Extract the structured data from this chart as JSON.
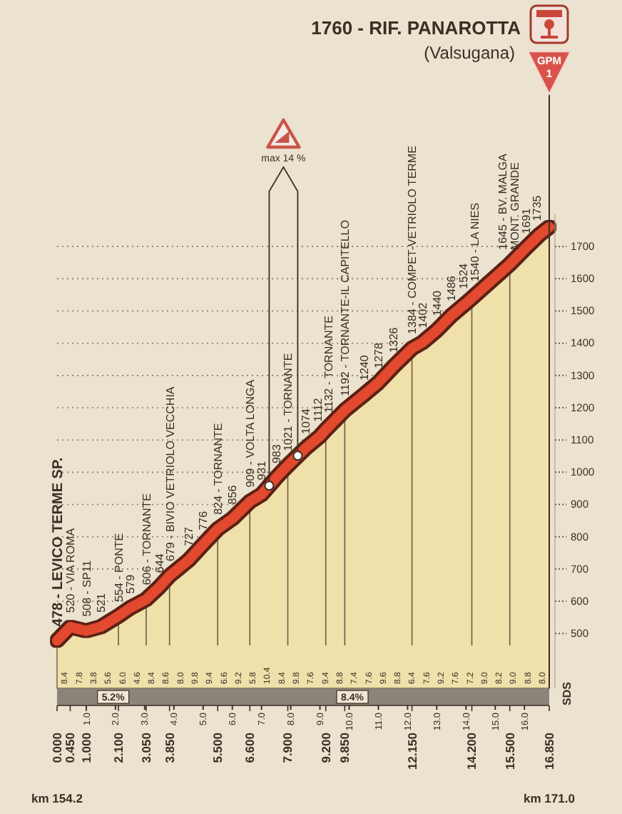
{
  "chart_data": {
    "type": "area",
    "title": "1760 - RIF. PANAROTTA",
    "subtitle": "(Valsugana)",
    "x": [
      0,
      0.45,
      1,
      1.5,
      2.1,
      2.5,
      3.05,
      3.5,
      3.85,
      4.5,
      5,
      5.5,
      6,
      6.6,
      7,
      7.5,
      7.9,
      8.5,
      9,
      9.2,
      9.85,
      10.5,
      11,
      11.5,
      12.15,
      12.5,
      13,
      13.5,
      14,
      14.2,
      15.5,
      16,
      16.5,
      16.85
    ],
    "values": [
      478,
      520,
      508,
      521,
      554,
      579,
      606,
      644,
      679,
      727,
      776,
      824,
      856,
      909,
      931,
      983,
      1021,
      1074,
      1112,
      1132,
      1192,
      1240,
      1278,
      1326,
      1384,
      1402,
      1440,
      1486,
      1524,
      1540,
      1645,
      1691,
      1735,
      1760
    ],
    "value_labels": [
      "478 - LEVICO TERME SP.",
      "520 - VIA ROMA",
      "508 - SP11",
      "521",
      "554 - PONTE",
      "579",
      "606 - TORNANTE",
      "644",
      "679 - BIVIO VETRIOLO VECCHIA",
      "727",
      "776",
      "824 - TORNANTE",
      "856",
      "909 - VOLTA LONGA",
      "931",
      "983",
      "1021 - TORNANTE",
      "1074",
      "1112",
      "1132 - TORNANTE",
      "1192 - TORNANTE-IL CAPITELLO",
      "1240",
      "1278",
      "1326",
      "1384 - COMPET-VETRIOLO TERME",
      "1402",
      "1440",
      "1486",
      "1524",
      "1540 - LA NIES",
      "1645 - BV. MALGA MONT. GRANDE",
      "1691",
      "1735",
      null
    ],
    "color": "#e2492d",
    "xlim": [
      0,
      16.85
    ],
    "xticks": [
      {
        "value": 0,
        "label": "0.000"
      },
      {
        "value": 0.45,
        "label": "0.450"
      },
      {
        "value": 1,
        "label": "1.000"
      },
      {
        "value": 2.1,
        "label": "2.100"
      },
      {
        "value": 3.05,
        "label": "3.050"
      },
      {
        "value": 3.85,
        "label": "3.850"
      },
      {
        "value": 5.5,
        "label": "5.500"
      },
      {
        "value": 6.6,
        "label": "6.600"
      },
      {
        "value": 7.9,
        "label": "7.900"
      },
      {
        "value": 9.2,
        "label": "9.200"
      },
      {
        "value": 9.85,
        "label": "9.850"
      },
      {
        "value": 12.15,
        "label": "12.150"
      },
      {
        "value": 14.2,
        "label": "14.200"
      },
      {
        "value": 15.5,
        "label": "15.500"
      },
      {
        "value": 16.85,
        "label": "16.850"
      }
    ],
    "x2lim": [
      0,
      16.85
    ],
    "x2ticks": [
      {
        "value": 1,
        "label": "1.0"
      },
      {
        "value": 2,
        "label": "2.0"
      },
      {
        "value": 3,
        "label": "3.0"
      },
      {
        "value": 4,
        "label": "4.0"
      },
      {
        "value": 5,
        "label": "5.0"
      },
      {
        "value": 6,
        "label": "6.0"
      },
      {
        "value": 7,
        "label": "7.0"
      },
      {
        "value": 8,
        "label": "8.0"
      },
      {
        "value": 9,
        "label": "9.0"
      },
      {
        "value": 10,
        "label": "10.0"
      },
      {
        "value": 11,
        "label": "11.0"
      },
      {
        "value": 12,
        "label": "12.0"
      },
      {
        "value": 13,
        "label": "13.0"
      },
      {
        "value": 14,
        "label": "14.0"
      },
      {
        "value": 15,
        "label": "15.0"
      },
      {
        "value": 16,
        "label": "16.0"
      }
    ],
    "ylim": [
      330,
      1800
    ],
    "yticks": [
      500,
      600,
      700,
      800,
      900,
      1000,
      1100,
      1200,
      1300,
      1400,
      1500,
      1600,
      1700
    ],
    "grid": true,
    "ref_lines": [
      {
        "axis": "x",
        "value": 16.85,
        "label": "GPM 1"
      }
    ],
    "annotations": [
      "km 154.2",
      "km 171.0",
      "5.2%",
      "8.4%",
      "SDS",
      "max 14 %",
      "8.4",
      "7.8",
      "3.8",
      "5.6",
      "6.0",
      "4.6",
      "8.4",
      "8.6",
      "8.0",
      "9.8",
      "9.4",
      "6.6",
      "9.2",
      "5.8",
      "10.4",
      "8.4",
      "9.8",
      "7.6",
      "9.4",
      "8.8",
      "7.4",
      "7.6",
      "9.6",
      "8.8",
      "6.4",
      "7.6",
      "9.2",
      "7.6",
      "7.2",
      "9.0",
      "8.2",
      "9.0",
      "8.8",
      "8.0"
    ]
  }
}
